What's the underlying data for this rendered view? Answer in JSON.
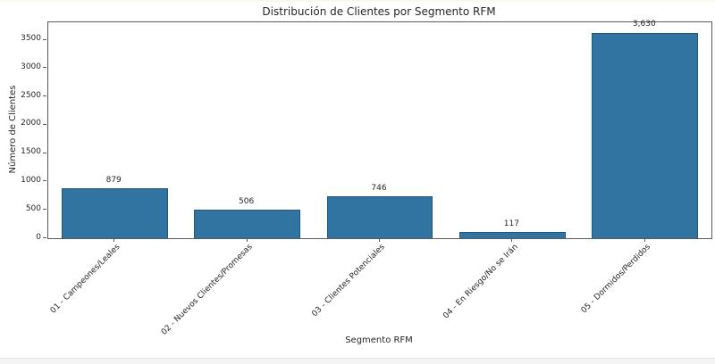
{
  "chart_data": {
    "type": "bar",
    "title": "Distribución de Clientes por Segmento RFM",
    "xlabel": "Segmento RFM",
    "ylabel": "Número de Clientes",
    "categories": [
      "01 - Campeones/Leales",
      "02 - Nuevos Clientes/Promesas",
      "03 - Clientes Potenciales",
      "04 - En Riesgo/No se Irán",
      "05 - Dormidos/Perdidos"
    ],
    "values": [
      879,
      506,
      746,
      117,
      3630
    ],
    "value_labels": [
      "879",
      "506",
      "746",
      "117",
      "3,630"
    ],
    "yticks": [
      0,
      500,
      1000,
      1500,
      2000,
      2500,
      3000,
      3500
    ],
    "ylim": [
      0,
      3811
    ],
    "grid": false,
    "legend": null,
    "bar_width_fraction": 0.8,
    "colors": {
      "bar_fill": "#3274a1",
      "bar_edge": "#20577e",
      "spine": "#5a5a5a",
      "text": "#262626"
    }
  }
}
